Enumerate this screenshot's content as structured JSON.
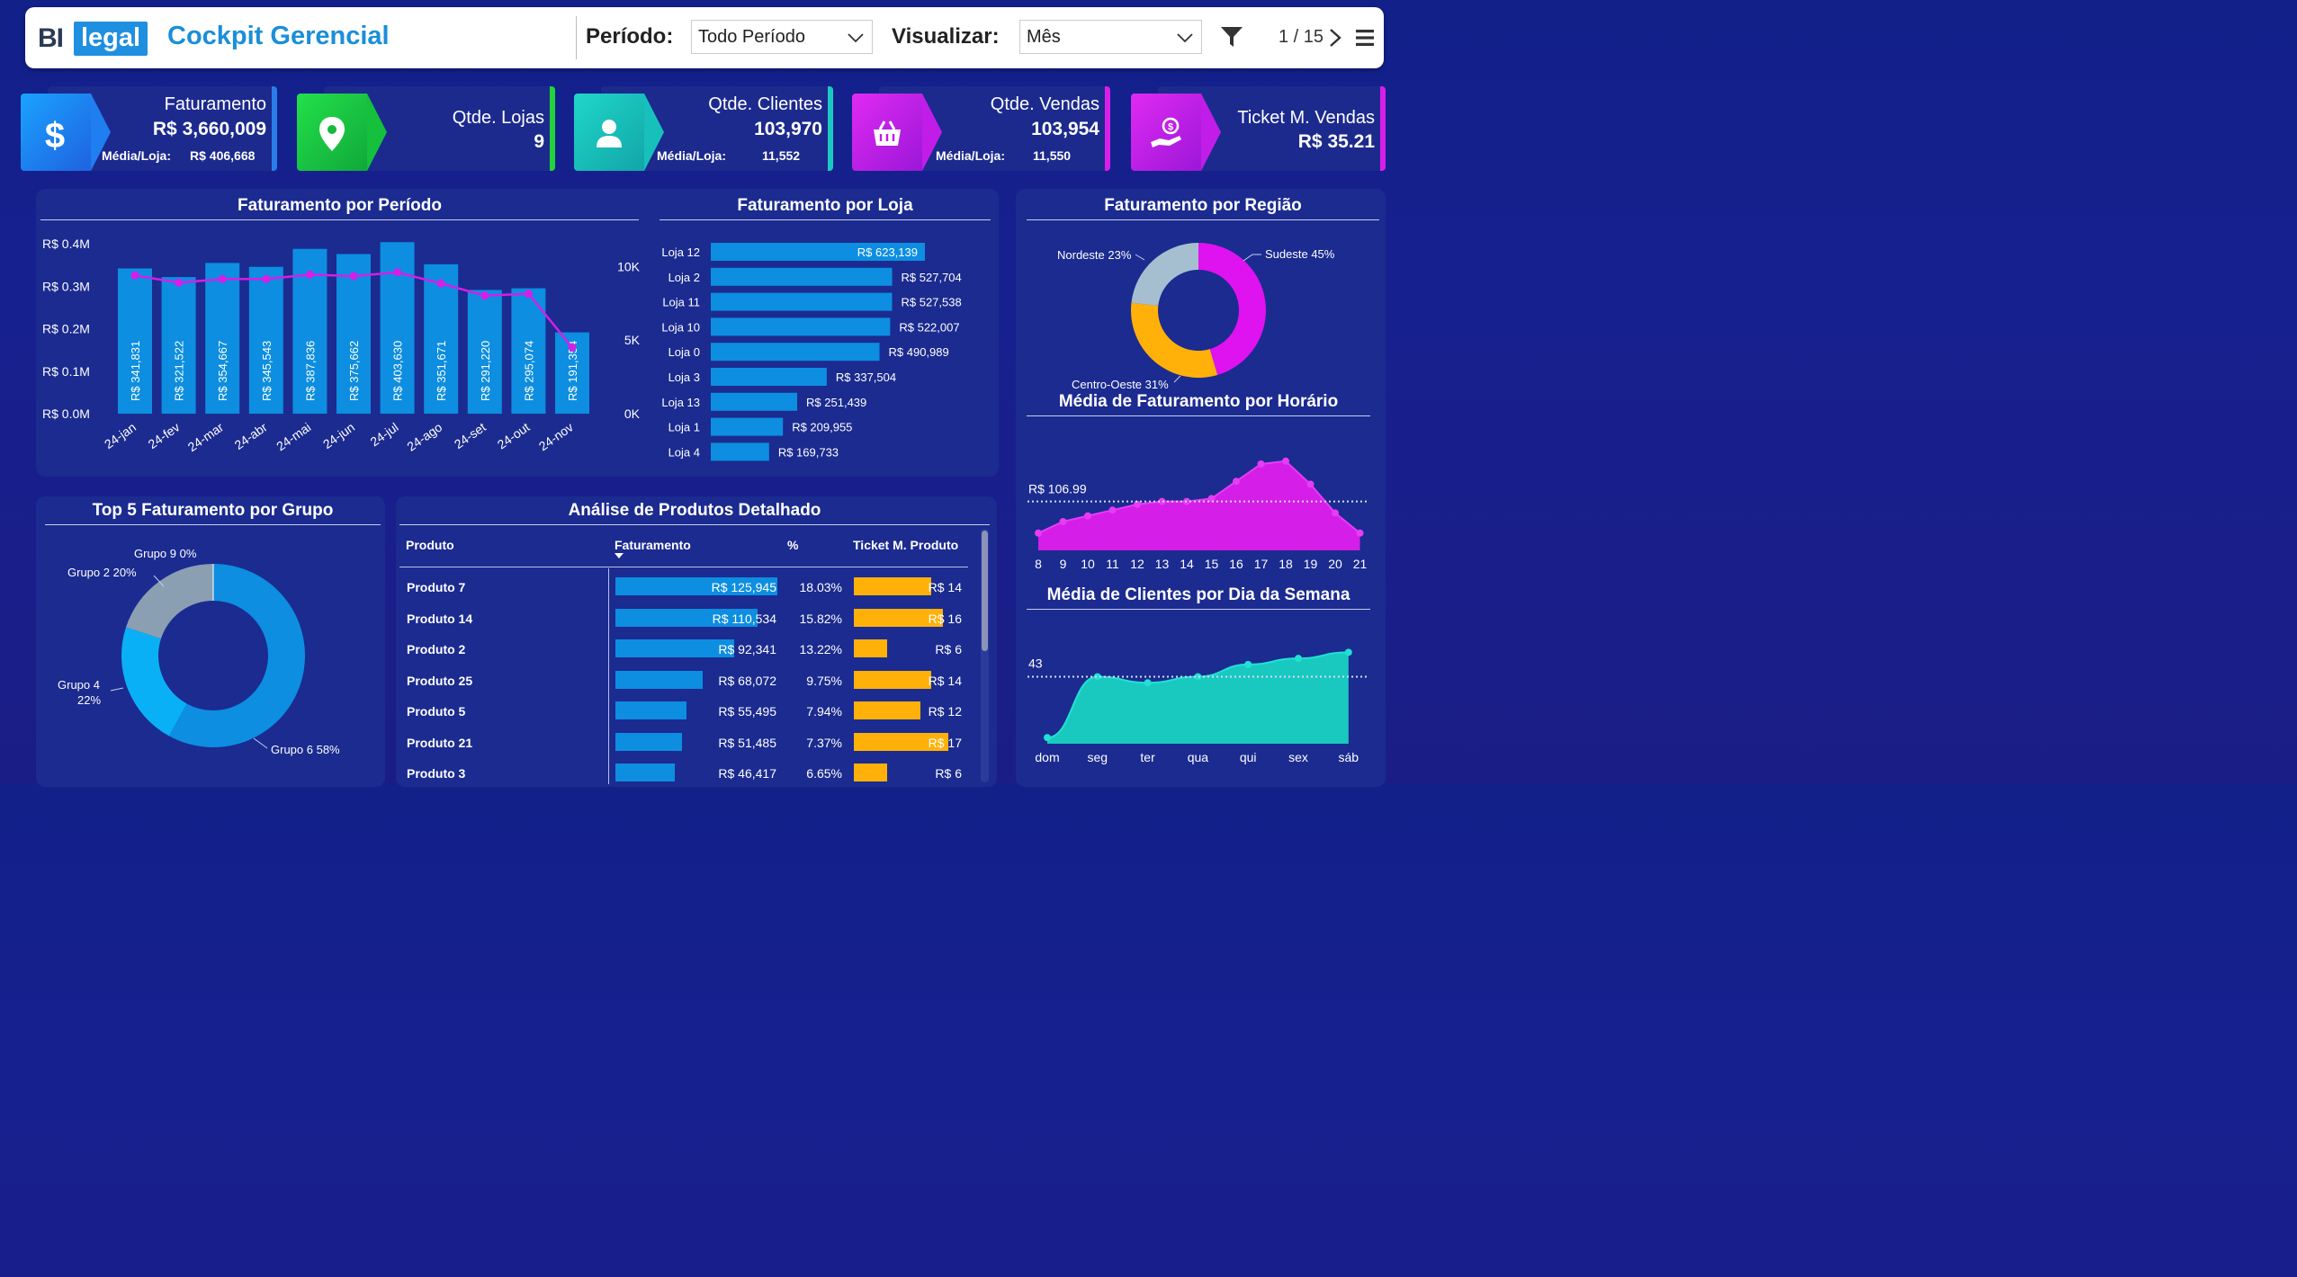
{
  "header": {
    "logo_bi": "BI",
    "logo_legal": "legal",
    "title": "Cockpit Gerencial",
    "periodo_label": "Período:",
    "periodo_value": "Todo Período",
    "visualizar_label": "Visualizar:",
    "visualizar_value": "Mês",
    "page_indicator": "1 / 15"
  },
  "kpis": [
    {
      "title": "Faturamento",
      "value": "R$ 3,660,009",
      "sub_label": "Média/Loja:",
      "sub_value": "R$ 406,668",
      "icon": "dollar-icon"
    },
    {
      "title": "Qtde. Lojas",
      "value": "9",
      "icon": "location-pin-icon"
    },
    {
      "title": "Qtde. Clientes",
      "value": "103,970",
      "sub_label": "Média/Loja:",
      "sub_value": "11,552",
      "icon": "user-icon"
    },
    {
      "title": "Qtde. Vendas",
      "value": "103,954",
      "sub_label": "Média/Loja:",
      "sub_value": "11,550",
      "icon": "basket-icon"
    },
    {
      "title": "Ticket M. Vendas",
      "value": "R$ 35.21",
      "icon": "money-hand-icon"
    }
  ],
  "colors": {
    "blue_bar": "#0d8ee0",
    "line_magenta": "#d51ee8",
    "teal": "#19c9c0",
    "orange": "#ffb10a"
  },
  "panels": {
    "periodo_title": "Faturamento por Período",
    "loja_title": "Faturamento por Loja",
    "regiao_title": "Faturamento por Região",
    "horario_title": "Média de Faturamento por Horário",
    "grupo_title": "Top 5 Faturamento por Grupo",
    "produtos_title": "Análise de Produtos Detalhado",
    "semana_title": "Média de Clientes por Dia da Semana"
  },
  "chart_data": [
    {
      "type": "bar",
      "title": "Faturamento por Período",
      "categories": [
        "24-jan",
        "24-fev",
        "24-mar",
        "24-abr",
        "24-mai",
        "24-jun",
        "24-jul",
        "24-ago",
        "24-set",
        "24-out",
        "24-nov"
      ],
      "series": [
        {
          "values": [
            341831,
            321522,
            354667,
            345543,
            387836,
            375662,
            403630,
            351671,
            291220,
            295074,
            191354
          ],
          "labels": [
            "R$ 341,831",
            "R$ 321,522",
            "R$ 354,667",
            "R$ 345,543",
            "R$ 387,836",
            "R$ 375,662",
            "R$ 403,630",
            "R$ 351,671",
            "R$ 291,220",
            "R$ 295,074",
            "R$ 191,354"
          ]
        },
        {
          "type": "line",
          "values": [
            9400,
            8900,
            9150,
            9150,
            9450,
            9350,
            9600,
            8850,
            8020,
            8150,
            4500
          ]
        }
      ],
      "y_left_ticks": [
        "R$ 0.4M",
        "R$ 0.3M",
        "R$ 0.2M",
        "R$ 0.1M",
        "R$ 0.0M"
      ],
      "y_left_range": [
        0,
        400000
      ],
      "y_right_ticks": [
        "10K",
        "5K",
        "0K"
      ],
      "y_right_range": [
        0,
        11000
      ]
    },
    {
      "type": "bar",
      "title": "Faturamento por Loja",
      "orientation": "horizontal",
      "categories": [
        "Loja 12",
        "Loja 2",
        "Loja 11",
        "Loja 10",
        "Loja 0",
        "Loja 3",
        "Loja 13",
        "Loja 1",
        "Loja 4"
      ],
      "values": [
        623139,
        527704,
        527538,
        522007,
        490989,
        337504,
        251439,
        209955,
        169733
      ],
      "labels": [
        "R$ 623,139",
        "R$ 527,704",
        "R$ 527,538",
        "R$ 522,007",
        "R$ 490,989",
        "R$ 337,504",
        "R$ 251,439",
        "R$ 209,955",
        "R$ 169,733"
      ]
    },
    {
      "type": "pie",
      "title": "Faturamento por Região",
      "categories": [
        "Sudeste",
        "Centro-Oeste",
        "Nordeste"
      ],
      "values": [
        45,
        31,
        23
      ],
      "labels": [
        "Sudeste 45%",
        "Centro-Oeste 31%",
        "Nordeste 23%"
      ],
      "colors": [
        "#df12f0",
        "#ffb10a",
        "#a6bfd0"
      ]
    },
    {
      "type": "area",
      "title": "Média de Faturamento por Horário",
      "x": [
        "8",
        "9",
        "10",
        "11",
        "12",
        "13",
        "14",
        "15",
        "16",
        "17",
        "18",
        "19",
        "20",
        "21"
      ],
      "values": [
        96,
        100,
        102,
        104,
        106,
        107,
        107,
        108,
        114,
        120,
        121,
        113,
        103,
        96
      ],
      "reference_line": 106.99,
      "reference_label": "R$ 106.99",
      "y_range": [
        90,
        125
      ]
    },
    {
      "type": "pie",
      "title": "Top 5 Faturamento por Grupo",
      "categories": [
        "Grupo 6",
        "Grupo 4",
        "Grupo 2",
        "Grupo 9"
      ],
      "values": [
        58,
        22,
        20,
        0
      ],
      "labels": [
        "Grupo 6 58%",
        "Grupo 4 22%",
        "Grupo 2 20%",
        "Grupo 9 0%"
      ],
      "colors": [
        "#0d8ee0",
        "#0ab0f5",
        "#8a9fb2",
        "#ffffff"
      ]
    },
    {
      "type": "area",
      "title": "Média de Clientes por Dia da Semana",
      "x": [
        "dom",
        "seg",
        "ter",
        "qua",
        "qui",
        "sex",
        "sáb"
      ],
      "values": [
        33,
        43,
        42,
        43,
        45,
        46,
        47
      ],
      "reference_line": 43,
      "reference_label": "43",
      "y_range": [
        32,
        50
      ]
    }
  ],
  "products_table": {
    "headers": [
      "Produto",
      "Faturamento",
      "%",
      "Ticket M. Produto"
    ],
    "rows": [
      {
        "produto": "Produto 7",
        "faturamento": "R$ 125,945",
        "fat_value": 125945,
        "pct": "18.03%",
        "ticket": "R$ 14",
        "ticket_value": 14
      },
      {
        "produto": "Produto 14",
        "faturamento": "R$ 110,534",
        "fat_value": 110534,
        "pct": "15.82%",
        "ticket": "R$ 16",
        "ticket_value": 16
      },
      {
        "produto": "Produto 2",
        "faturamento": "R$ 92,341",
        "fat_value": 92341,
        "pct": "13.22%",
        "ticket": "R$ 6",
        "ticket_value": 6
      },
      {
        "produto": "Produto 25",
        "faturamento": "R$ 68,072",
        "fat_value": 68072,
        "pct": "9.75%",
        "ticket": "R$ 14",
        "ticket_value": 14
      },
      {
        "produto": "Produto 5",
        "faturamento": "R$ 55,495",
        "fat_value": 55495,
        "pct": "7.94%",
        "ticket": "R$ 12",
        "ticket_value": 12
      },
      {
        "produto": "Produto 21",
        "faturamento": "R$ 51,485",
        "fat_value": 51485,
        "pct": "7.37%",
        "ticket": "R$ 17",
        "ticket_value": 17
      },
      {
        "produto": "Produto 3",
        "faturamento": "R$ 46,417",
        "fat_value": 46417,
        "pct": "6.65%",
        "ticket": "R$ 6",
        "ticket_value": 6
      }
    ]
  }
}
